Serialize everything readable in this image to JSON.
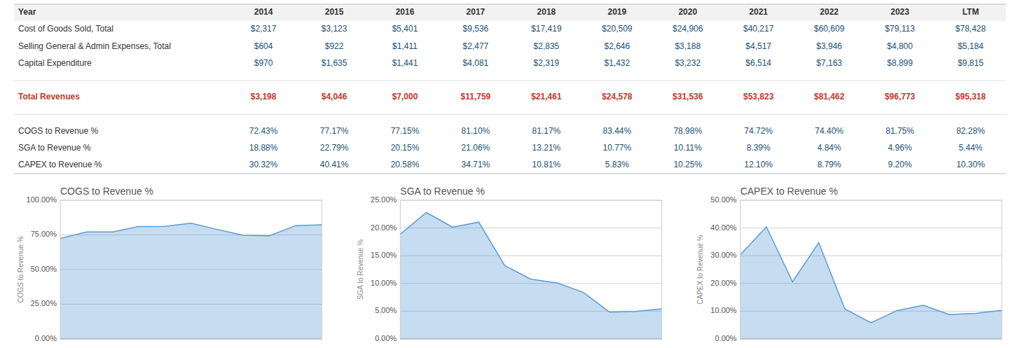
{
  "chart_data": [
    {
      "type": "table",
      "header": "Year",
      "columns": [
        "2014",
        "2015",
        "2016",
        "2017",
        "2018",
        "2019",
        "2020",
        "2021",
        "2022",
        "2023",
        "LTM"
      ],
      "series": [
        {
          "name": "Cost of Goods Sold, Total",
          "values": [
            2317,
            3123,
            5401,
            9536,
            17419,
            20509,
            24906,
            40217,
            60609,
            79113,
            78428
          ],
          "value_labels": [
            "$2,317",
            "$3,123",
            "$5,401",
            "$9,536",
            "$17,419",
            "$20,509",
            "$24,906",
            "$40,217",
            "$60,609",
            "$79,113",
            "$78,428"
          ]
        },
        {
          "name": "Selling General & Admin Expenses, Total",
          "values": [
            604,
            922,
            1411,
            2477,
            2835,
            2646,
            3188,
            4517,
            3946,
            4800,
            5184
          ],
          "value_labels": [
            "$604",
            "$922",
            "$1,411",
            "$2,477",
            "$2,835",
            "$2,646",
            "$3,188",
            "$4,517",
            "$3,946",
            "$4,800",
            "$5,184"
          ]
        },
        {
          "name": "Capital Expenditure",
          "values": [
            970,
            1635,
            1441,
            4081,
            2319,
            1432,
            3232,
            6514,
            7163,
            8899,
            9815
          ],
          "value_labels": [
            "$970",
            "$1,635",
            "$1,441",
            "$4,081",
            "$2,319",
            "$1,432",
            "$3,232",
            "$6,514",
            "$7,163",
            "$8,899",
            "$9,815"
          ]
        },
        {
          "name": "Total Revenues",
          "color": "#c0392b",
          "values": [
            3198,
            4046,
            7000,
            11759,
            21461,
            24578,
            31536,
            53823,
            81462,
            96773,
            95318
          ],
          "value_labels": [
            "$3,198",
            "$4,046",
            "$7,000",
            "$11,759",
            "$21,461",
            "$24,578",
            "$31,536",
            "$53,823",
            "$81,462",
            "$96,773",
            "$95,318"
          ]
        },
        {
          "name": "COGS to Revenue %",
          "values": [
            72.43,
            77.17,
            77.15,
            81.1,
            81.17,
            83.44,
            78.98,
            74.72,
            74.4,
            81.75,
            82.28
          ],
          "value_labels": [
            "72.43%",
            "77.17%",
            "77.15%",
            "81.10%",
            "81.17%",
            "83.44%",
            "78.98%",
            "74.72%",
            "74.40%",
            "81.75%",
            "82.28%"
          ]
        },
        {
          "name": "SGA to Revenue %",
          "values": [
            18.88,
            22.79,
            20.15,
            21.06,
            13.21,
            10.77,
            10.11,
            8.39,
            4.84,
            4.96,
            5.44
          ],
          "value_labels": [
            "18.88%",
            "22.79%",
            "20.15%",
            "21.06%",
            "13.21%",
            "10.77%",
            "10.11%",
            "8.39%",
            "4.84%",
            "4.96%",
            "5.44%"
          ]
        },
        {
          "name": "CAPEX to Revenue %",
          "values": [
            30.32,
            40.41,
            20.58,
            34.71,
            10.81,
            5.83,
            10.25,
            12.1,
            8.79,
            9.2,
            10.3
          ],
          "value_labels": [
            "30.32%",
            "40.41%",
            "20.58%",
            "34.71%",
            "10.81%",
            "5.83%",
            "10.25%",
            "12.10%",
            "8.79%",
            "9.20%",
            "10.30%"
          ]
        }
      ]
    },
    {
      "type": "area",
      "title": "COGS to Revenue %",
      "ylabel": "COGS to Revenue %",
      "color": "#5b9bd5",
      "values": [
        72.43,
        77.17,
        77.15,
        81.1,
        81.17,
        83.44,
        78.98,
        74.72,
        74.4,
        81.75,
        82.28
      ],
      "ylim": [
        0,
        100
      ],
      "yticks": [
        {
          "value": 0,
          "label": "0.00%"
        },
        {
          "value": 25,
          "label": "25.00%"
        },
        {
          "value": 50,
          "label": "50.00%"
        },
        {
          "value": 75,
          "label": "75.00%"
        },
        {
          "value": 100,
          "label": "100.00%"
        }
      ],
      "grid": true,
      "tick_labels": "y"
    },
    {
      "type": "area",
      "title": "SGA to Revenue %",
      "ylabel": "SGA to Revenue %",
      "color": "#5b9bd5",
      "values": [
        18.88,
        22.79,
        20.15,
        21.06,
        13.21,
        10.77,
        10.11,
        8.39,
        4.84,
        4.96,
        5.44
      ],
      "ylim": [
        0,
        25
      ],
      "yticks": [
        {
          "value": 0,
          "label": "0.00%"
        },
        {
          "value": 5,
          "label": "5.00%"
        },
        {
          "value": 10,
          "label": "10.00%"
        },
        {
          "value": 15,
          "label": "15.00%"
        },
        {
          "value": 20,
          "label": "20.00%"
        },
        {
          "value": 25,
          "label": "25.00%"
        }
      ],
      "grid": true,
      "tick_labels": "y"
    },
    {
      "type": "area",
      "title": "CAPEX to Revenue %",
      "ylabel": "CAPEX to Revenue %",
      "color": "#5b9bd5",
      "values": [
        30.32,
        40.41,
        20.58,
        34.71,
        10.81,
        5.83,
        10.25,
        12.1,
        8.79,
        9.2,
        10.3
      ],
      "ylim": [
        0,
        50
      ],
      "yticks": [
        {
          "value": 0,
          "label": "0.00%"
        },
        {
          "value": 10,
          "label": "10.00%"
        },
        {
          "value": 20,
          "label": "20.00%"
        },
        {
          "value": 30,
          "label": "30.00%"
        },
        {
          "value": 40,
          "label": "40.00%"
        },
        {
          "value": 50,
          "label": "50.00%"
        }
      ],
      "grid": true,
      "tick_labels": "y"
    }
  ]
}
